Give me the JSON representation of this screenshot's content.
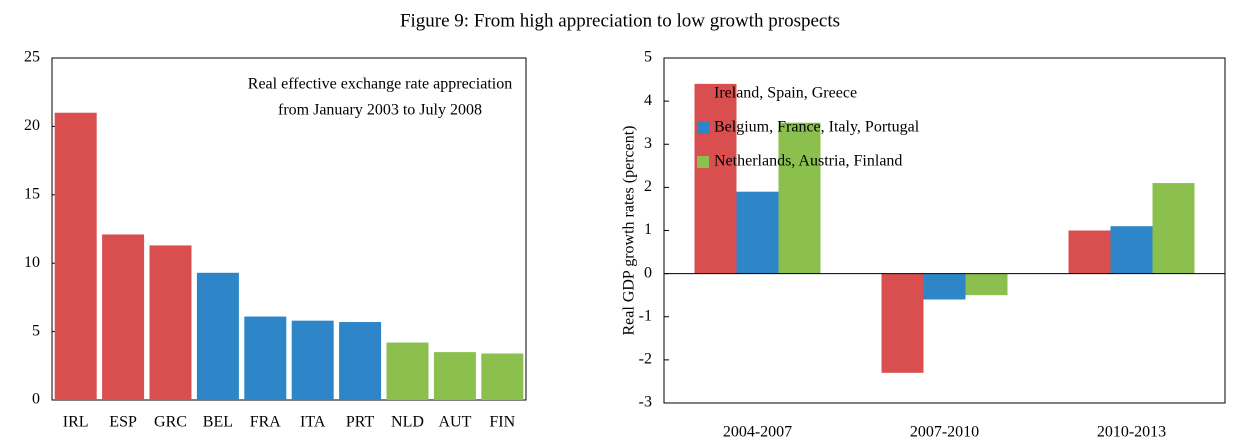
{
  "title": "Figure 9: From high appreciation to low growth prospects",
  "chart_data": [
    {
      "type": "bar",
      "annotation": [
        "Real effective exchange rate appreciation",
        "from January 2003 to July 2008"
      ],
      "categories": [
        "IRL",
        "ESP",
        "GRC",
        "BEL",
        "FRA",
        "ITA",
        "PRT",
        "NLD",
        "AUT",
        "FIN"
      ],
      "values": [
        21.0,
        12.1,
        11.3,
        9.3,
        6.1,
        5.8,
        5.7,
        4.2,
        3.5,
        3.4
      ],
      "colors": [
        "#d94f4f",
        "#d94f4f",
        "#d94f4f",
        "#2e86c8",
        "#2e86c8",
        "#2e86c8",
        "#2e86c8",
        "#8bbf4e",
        "#8bbf4e",
        "#8bbf4e"
      ],
      "ylim": [
        0,
        25
      ],
      "yticks": [
        0,
        5,
        10,
        15,
        20,
        25
      ]
    },
    {
      "type": "bar",
      "ylabel": "Real GDP growth rates (percent)",
      "categories": [
        "2004-2007",
        "2007-2010",
        "2010-2013"
      ],
      "series": [
        {
          "name": "Ireland, Spain, Greece",
          "color": "#d94f4f",
          "values": [
            4.4,
            -2.3,
            1.0
          ]
        },
        {
          "name": "Belgium, France, Italy, Portugal",
          "color": "#2e86c8",
          "values": [
            1.9,
            -0.6,
            1.1
          ]
        },
        {
          "name": "Netherlands, Austria, Finland",
          "color": "#8bbf4e",
          "values": [
            3.5,
            -0.5,
            2.1
          ]
        }
      ],
      "ylim": [
        -3,
        5
      ],
      "yticks": [
        -3,
        -2,
        -1,
        0,
        1,
        2,
        3,
        4,
        5
      ],
      "legend": "upper left"
    }
  ]
}
